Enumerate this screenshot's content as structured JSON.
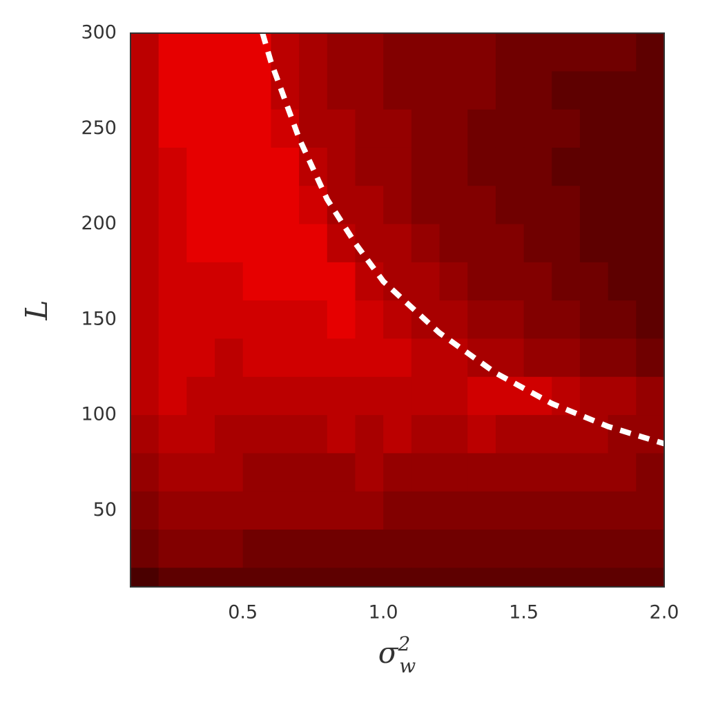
{
  "chart_data": {
    "type": "contour",
    "xlabel": {
      "base": "σ",
      "sub": "w",
      "sup": "2"
    },
    "ylabel": "L",
    "xlim": [
      0.1,
      2.0
    ],
    "ylim": [
      10,
      300
    ],
    "xticks": [
      0.5,
      {
        "value": 1,
        "label": "1.0"
      },
      1.5,
      {
        "value": 2,
        "label": "2.0"
      }
    ],
    "yticks": [
      50,
      100,
      150,
      200,
      250,
      300
    ],
    "level_colors": [
      "#4a0000",
      "#5e0000",
      "#700000",
      "#820000",
      "#950000",
      "#a80000",
      "#bb0000",
      "#d00000",
      "#e60000"
    ],
    "grid_x": [
      0.15,
      0.25,
      0.35,
      0.45,
      0.55,
      0.65,
      0.75,
      0.85,
      0.95,
      1.05,
      1.15,
      1.25,
      1.35,
      1.45,
      1.55,
      1.65,
      1.75,
      1.85,
      1.95
    ],
    "grid_y": [
      290,
      270,
      250,
      230,
      210,
      190,
      170,
      150,
      130,
      110,
      90,
      70,
      50,
      30,
      10
    ],
    "z": [
      [
        6,
        8,
        8,
        8,
        8,
        6,
        5,
        4,
        4,
        3,
        3,
        3,
        3,
        2,
        2,
        2,
        2,
        2,
        1
      ],
      [
        6,
        8,
        8,
        8,
        8,
        6,
        5,
        4,
        4,
        3,
        3,
        3,
        3,
        2,
        2,
        1,
        1,
        1,
        1
      ],
      [
        6,
        8,
        8,
        8,
        8,
        7,
        5,
        5,
        4,
        4,
        3,
        3,
        2,
        2,
        2,
        2,
        1,
        1,
        1
      ],
      [
        6,
        7,
        8,
        8,
        8,
        8,
        6,
        5,
        4,
        4,
        3,
        3,
        2,
        2,
        2,
        1,
        1,
        1,
        1
      ],
      [
        6,
        7,
        8,
        8,
        8,
        8,
        7,
        5,
        5,
        4,
        3,
        3,
        3,
        2,
        2,
        2,
        1,
        1,
        1
      ],
      [
        6,
        7,
        8,
        8,
        8,
        8,
        8,
        6,
        5,
        5,
        4,
        3,
        3,
        3,
        2,
        2,
        1,
        1,
        1
      ],
      [
        6,
        7,
        7,
        7,
        8,
        8,
        8,
        8,
        6,
        5,
        5,
        4,
        3,
        3,
        3,
        2,
        2,
        1,
        1
      ],
      [
        6,
        7,
        7,
        7,
        7,
        7,
        7,
        8,
        7,
        6,
        5,
        5,
        4,
        4,
        3,
        3,
        2,
        2,
        1
      ],
      [
        6,
        7,
        7,
        6,
        7,
        7,
        7,
        7,
        7,
        7,
        6,
        6,
        5,
        5,
        4,
        4,
        3,
        3,
        2
      ],
      [
        6,
        7,
        6,
        6,
        6,
        6,
        6,
        6,
        6,
        6,
        6,
        6,
        7,
        7,
        7,
        6,
        5,
        5,
        4
      ],
      [
        5,
        6,
        6,
        5,
        5,
        5,
        5,
        6,
        5,
        6,
        5,
        5,
        6,
        5,
        5,
        5,
        5,
        4,
        4
      ],
      [
        4,
        5,
        5,
        5,
        4,
        4,
        4,
        4,
        5,
        4,
        4,
        4,
        4,
        4,
        4,
        4,
        4,
        4,
        3
      ],
      [
        3,
        4,
        4,
        4,
        4,
        4,
        4,
        4,
        4,
        3,
        3,
        3,
        3,
        3,
        3,
        3,
        3,
        3,
        3
      ],
      [
        2,
        3,
        3,
        3,
        2,
        2,
        2,
        2,
        2,
        2,
        2,
        2,
        2,
        2,
        2,
        2,
        2,
        2,
        2
      ],
      [
        0,
        1,
        1,
        1,
        1,
        1,
        1,
        1,
        1,
        1,
        1,
        1,
        1,
        1,
        1,
        1,
        1,
        1,
        1
      ]
    ],
    "curve": {
      "color": "#ffffff",
      "x": [
        0.57,
        0.6,
        0.7,
        0.8,
        0.9,
        1.0,
        1.2,
        1.4,
        1.6,
        1.8,
        2.0
      ],
      "values": [
        300,
        285,
        245,
        213,
        190,
        170,
        143,
        122,
        106,
        94,
        85
      ]
    }
  }
}
